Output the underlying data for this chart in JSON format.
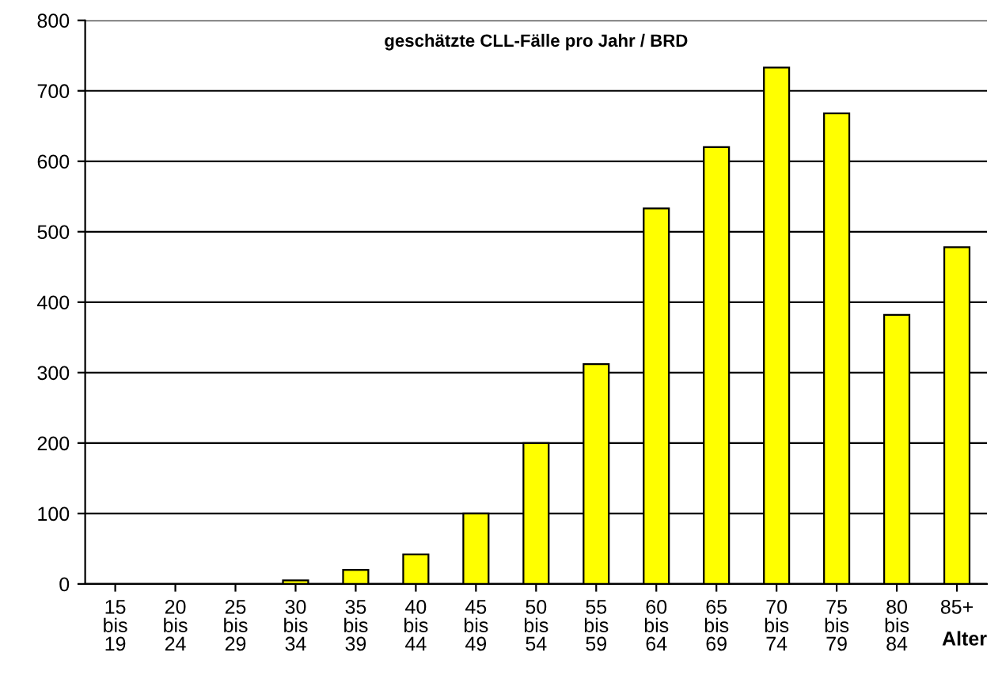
{
  "chart_data": {
    "type": "bar",
    "title": "geschätzte CLL-Fälle pro Jahr / BRD",
    "xlabel": "Alter",
    "categories": [
      "15\nbis\n19",
      "20\nbis\n24",
      "25\nbis\n29",
      "30\nbis\n34",
      "35\nbis\n39",
      "40\nbis\n44",
      "45\nbis\n49",
      "50\nbis\n54",
      "55\nbis\n59",
      "60\nbis\n64",
      "65\nbis\n69",
      "70\nbis\n74",
      "75\nbis\n79",
      "80\nbis\n84",
      "85+"
    ],
    "values": [
      0,
      0,
      0,
      5,
      20,
      42,
      100,
      200,
      312,
      533,
      620,
      733,
      668,
      382,
      478
    ],
    "color": "#ffff00",
    "ylim": [
      0,
      800
    ],
    "yticks": [
      0,
      100,
      200,
      300,
      400,
      500,
      600,
      700,
      800
    ],
    "grid": "y",
    "legend": false
  }
}
